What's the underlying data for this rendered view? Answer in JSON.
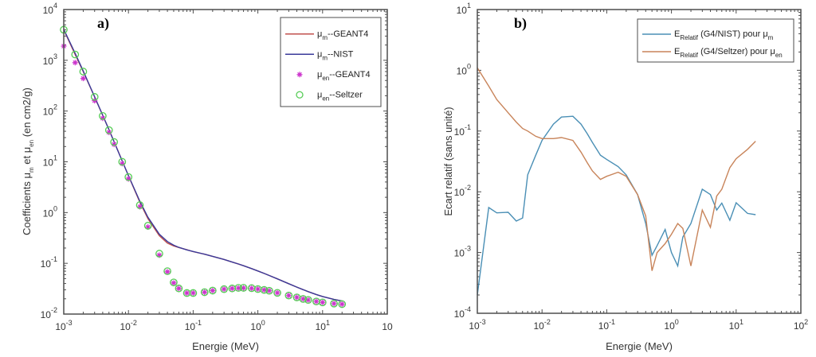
{
  "chart_data": [
    {
      "type": "line",
      "panel_label": "a)",
      "title": "",
      "xlabel": "Energie (MeV)",
      "ylabel": "Coefficients μm et μen (en cm2/g)",
      "ylabel_parts": {
        "prefix": "Coefficients μ",
        "sub1": "m",
        "mid": " et μ",
        "sub2": "en",
        "suffix": " (en cm2/g)"
      },
      "xscale": "log",
      "yscale": "log",
      "xlim": [
        0.001,
        100
      ],
      "ylim": [
        0.01,
        10000
      ],
      "x_ticks": [
        {
          "base": "10",
          "exp": "-3"
        },
        {
          "base": "10",
          "exp": "-2"
        },
        {
          "base": "10",
          "exp": "-1"
        },
        {
          "base": "10",
          "exp": "0"
        },
        {
          "base": "10",
          "exp": "1"
        },
        {
          "base": "10",
          "exp": ""
        }
      ],
      "y_ticks": [
        {
          "base": "10",
          "exp": "-2"
        },
        {
          "base": "10",
          "exp": "-1"
        },
        {
          "base": "10",
          "exp": "0"
        },
        {
          "base": "10",
          "exp": "1"
        },
        {
          "base": "10",
          "exp": "2"
        },
        {
          "base": "10",
          "exp": "3"
        },
        {
          "base": "10",
          "exp": "4"
        }
      ],
      "grid": false,
      "legend_position": "top-right",
      "series": [
        {
          "name": "μm--GEANT4",
          "legend": {
            "sym": "μ",
            "sub": "m",
            "rest": "--GEANT4"
          },
          "style": "line",
          "color": "#c0504d",
          "x": [
            0.001,
            0.0015,
            0.002,
            0.003,
            0.004,
            0.005,
            0.006,
            0.008,
            0.01,
            0.015,
            0.02,
            0.03,
            0.04,
            0.05,
            0.06,
            0.08,
            0.1,
            0.15,
            0.2,
            0.3,
            0.4,
            0.5,
            0.6,
            0.8,
            1,
            1.25,
            1.5,
            2,
            3,
            4,
            5,
            6,
            8,
            10,
            15,
            20
          ],
          "y": [
            4000,
            1300,
            600,
            190,
            82,
            43,
            25,
            10.5,
            5.3,
            1.6,
            0.76,
            0.35,
            0.25,
            0.22,
            0.205,
            0.185,
            0.17,
            0.151,
            0.137,
            0.119,
            0.106,
            0.0968,
            0.0896,
            0.0786,
            0.0707,
            0.0632,
            0.0575,
            0.0494,
            0.0397,
            0.034,
            0.0303,
            0.0277,
            0.0243,
            0.0222,
            0.0194,
            0.0181
          ]
        },
        {
          "name": "μm--NIST",
          "legend": {
            "sym": "μ",
            "sub": "m",
            "rest": "--NIST"
          },
          "style": "line",
          "color": "#3a3a9a",
          "x": [
            0.001,
            0.0015,
            0.002,
            0.003,
            0.004,
            0.005,
            0.006,
            0.008,
            0.01,
            0.015,
            0.02,
            0.03,
            0.04,
            0.05,
            0.06,
            0.08,
            0.1,
            0.15,
            0.2,
            0.3,
            0.4,
            0.5,
            0.6,
            0.8,
            1,
            1.25,
            1.5,
            2,
            3,
            4,
            5,
            6,
            8,
            10,
            15,
            20
          ],
          "y": [
            4078,
            1376,
            617,
            192,
            82.8,
            42.6,
            24.6,
            10.4,
            5.33,
            1.67,
            0.81,
            0.376,
            0.268,
            0.227,
            0.206,
            0.184,
            0.171,
            0.151,
            0.137,
            0.119,
            0.106,
            0.0969,
            0.0896,
            0.0787,
            0.0707,
            0.0632,
            0.0575,
            0.0494,
            0.0397,
            0.034,
            0.0303,
            0.0277,
            0.0243,
            0.0222,
            0.0194,
            0.0181
          ]
        },
        {
          "name": "μen--GEANT4",
          "legend": {
            "sym": "μ",
            "sub": "en",
            "rest": "--GEANT4"
          },
          "style": "marker-asterisk",
          "color": "#cc33cc",
          "x": [
            0.001,
            0.0015,
            0.002,
            0.003,
            0.004,
            0.005,
            0.006,
            0.008,
            0.01,
            0.015,
            0.02,
            0.03,
            0.04,
            0.05,
            0.06,
            0.08,
            0.1,
            0.15,
            0.2,
            0.3,
            0.4,
            0.5,
            0.6,
            0.8,
            1,
            1.25,
            1.5,
            2,
            3,
            4,
            5,
            6,
            8,
            10,
            15,
            20
          ],
          "y": [
            1900,
            900,
            440,
            160,
            72,
            38,
            22,
            9.2,
            4.6,
            1.3,
            0.52,
            0.145,
            0.068,
            0.041,
            0.032,
            0.026,
            0.026,
            0.027,
            0.029,
            0.031,
            0.032,
            0.0325,
            0.0326,
            0.0321,
            0.0311,
            0.0299,
            0.0288,
            0.0262,
            0.0232,
            0.0213,
            0.0199,
            0.019,
            0.0177,
            0.017,
            0.0161,
            0.0157
          ]
        },
        {
          "name": "μen--Seltzer",
          "legend": {
            "sym": "μ",
            "sub": "en",
            "rest": "--Seltzer"
          },
          "style": "marker-circle",
          "color": "#55cc55",
          "x": [
            0.001,
            0.0015,
            0.002,
            0.003,
            0.004,
            0.005,
            0.006,
            0.008,
            0.01,
            0.015,
            0.02,
            0.03,
            0.04,
            0.05,
            0.06,
            0.08,
            0.1,
            0.15,
            0.2,
            0.3,
            0.4,
            0.5,
            0.6,
            0.8,
            1,
            1.25,
            1.5,
            2,
            3,
            4,
            5,
            6,
            8,
            10,
            15,
            20
          ],
          "y": [
            4000,
            1300,
            600,
            190,
            80,
            42,
            24.5,
            10,
            5,
            1.4,
            0.55,
            0.155,
            0.07,
            0.042,
            0.032,
            0.026,
            0.026,
            0.027,
            0.029,
            0.031,
            0.032,
            0.0328,
            0.0329,
            0.0324,
            0.0311,
            0.0299,
            0.0288,
            0.0262,
            0.0232,
            0.0213,
            0.0199,
            0.019,
            0.0177,
            0.017,
            0.0161,
            0.0157
          ]
        }
      ]
    },
    {
      "type": "line",
      "panel_label": "b)",
      "title": "",
      "xlabel": "Energie (MeV)",
      "ylabel": "Ecart relatif (sans unité)",
      "xscale": "log",
      "yscale": "log",
      "xlim": [
        0.001,
        100
      ],
      "ylim": [
        0.0001,
        10
      ],
      "x_ticks": [
        {
          "base": "10",
          "exp": "-3"
        },
        {
          "base": "10",
          "exp": "-2"
        },
        {
          "base": "10",
          "exp": "-1"
        },
        {
          "base": "10",
          "exp": "0"
        },
        {
          "base": "10",
          "exp": "1"
        },
        {
          "base": "10",
          "exp": "2"
        }
      ],
      "y_ticks": [
        {
          "base": "10",
          "exp": "-4"
        },
        {
          "base": "10",
          "exp": "-3"
        },
        {
          "base": "10",
          "exp": "-2"
        },
        {
          "base": "10",
          "exp": "-1"
        },
        {
          "base": "10",
          "exp": "0"
        },
        {
          "base": "10",
          "exp": "1"
        }
      ],
      "grid": false,
      "legend_position": "top-right",
      "series": [
        {
          "name": "E_Relatif (G4/NIST) pour μm",
          "legend": {
            "sym": "E",
            "sub": "Relatif",
            "rest": " (G4/NIST) pour μ",
            "sub2": "m"
          },
          "color": "#4a8fb5",
          "x": [
            0.001,
            0.0015,
            0.002,
            0.003,
            0.004,
            0.005,
            0.006,
            0.008,
            0.01,
            0.015,
            0.02,
            0.03,
            0.04,
            0.05,
            0.06,
            0.08,
            0.1,
            0.15,
            0.2,
            0.3,
            0.4,
            0.5,
            0.6,
            0.8,
            1,
            1.25,
            1.5,
            2,
            3,
            4,
            5,
            6,
            8,
            10,
            15,
            20
          ],
          "y": [
            0.0002,
            0.0055,
            0.0045,
            0.0046,
            0.0033,
            0.0037,
            0.019,
            0.04,
            0.07,
            0.13,
            0.17,
            0.175,
            0.13,
            0.09,
            0.065,
            0.04,
            0.034,
            0.026,
            0.019,
            0.009,
            0.003,
            0.0009,
            0.0013,
            0.0024,
            0.001,
            0.0006,
            0.0018,
            0.003,
            0.011,
            0.009,
            0.005,
            0.0065,
            0.0034,
            0.0066,
            0.0044,
            0.0042
          ]
        },
        {
          "name": "E_Relatif (G4/Seltzer) pour μen",
          "legend": {
            "sym": "E",
            "sub": "Relatif",
            "rest": " (G4/Seltzer) pour μ",
            "sub2": "en"
          },
          "color": "#c8845a",
          "x": [
            0.001,
            0.0015,
            0.002,
            0.003,
            0.004,
            0.005,
            0.006,
            0.008,
            0.01,
            0.015,
            0.02,
            0.03,
            0.04,
            0.05,
            0.06,
            0.08,
            0.1,
            0.15,
            0.2,
            0.3,
            0.4,
            0.5,
            0.6,
            0.8,
            1,
            1.25,
            1.5,
            2,
            3,
            4,
            5,
            6,
            8,
            10,
            15,
            20
          ],
          "y": [
            1.1,
            0.55,
            0.33,
            0.2,
            0.14,
            0.11,
            0.1,
            0.082,
            0.075,
            0.075,
            0.078,
            0.07,
            0.045,
            0.03,
            0.022,
            0.016,
            0.018,
            0.021,
            0.018,
            0.009,
            0.004,
            0.0005,
            0.001,
            0.0014,
            0.002,
            0.003,
            0.0025,
            0.0006,
            0.005,
            0.0026,
            0.0085,
            0.011,
            0.025,
            0.035,
            0.05,
            0.068
          ]
        }
      ]
    }
  ]
}
